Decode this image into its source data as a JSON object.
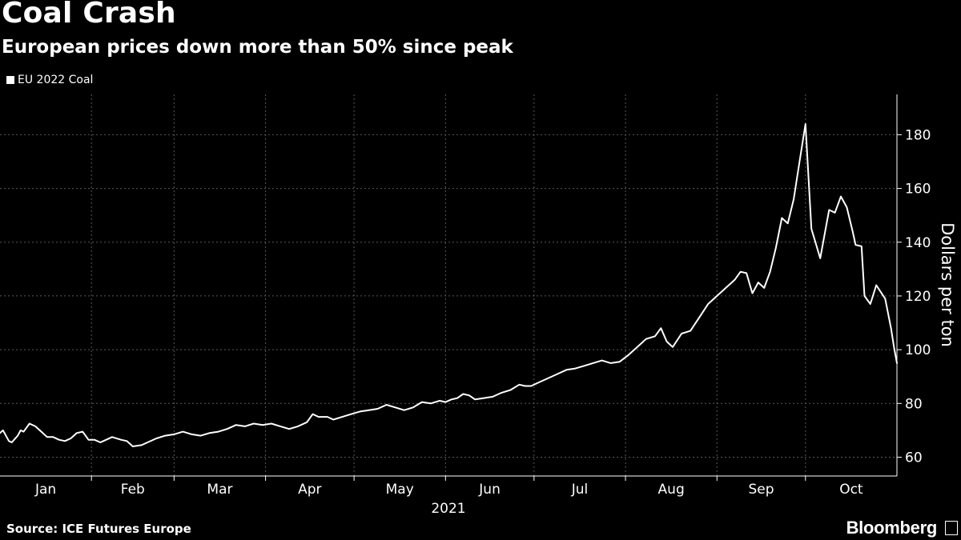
{
  "header": {
    "title": "Coal Crash",
    "subtitle": "European prices down more than 50% since peak"
  },
  "footer": {
    "source": "Source: ICE Futures Europe",
    "brand": "Bloomberg"
  },
  "colors": {
    "background": "#000000",
    "line": "#ffffff",
    "grid": "#5a5a5a"
  },
  "chart_data": {
    "type": "line",
    "title": "Coal Crash",
    "subtitle": "European prices down more than 50% since peak",
    "ylabel": "Dollars per ton",
    "xlabel": "2021",
    "xlim": [
      "2021-01-01",
      "2021-11-01"
    ],
    "ylim": [
      53,
      195
    ],
    "yticks": [
      60,
      80,
      100,
      120,
      140,
      160,
      180
    ],
    "xticks": [
      "Jan",
      "Feb",
      "Mar",
      "Apr",
      "May",
      "Jun",
      "Jul",
      "Aug",
      "Sep",
      "Oct"
    ],
    "year_label": "2021",
    "grid": true,
    "y_axis_position": "right",
    "legend_position": "top-left",
    "series": [
      {
        "name": "EU 2022 Coal",
        "color": "#ffffff",
        "points": [
          [
            "2021-01-01",
            69.0
          ],
          [
            "2021-01-02",
            70.0
          ],
          [
            "2021-01-04",
            66.0
          ],
          [
            "2021-01-05",
            65.5
          ],
          [
            "2021-01-07",
            68.0
          ],
          [
            "2021-01-08",
            70.0
          ],
          [
            "2021-01-09",
            69.5
          ],
          [
            "2021-01-11",
            72.5
          ],
          [
            "2021-01-13",
            71.5
          ],
          [
            "2021-01-15",
            69.5
          ],
          [
            "2021-01-17",
            67.5
          ],
          [
            "2021-01-19",
            67.5
          ],
          [
            "2021-01-21",
            66.5
          ],
          [
            "2021-01-23",
            66.0
          ],
          [
            "2021-01-25",
            67.0
          ],
          [
            "2021-01-27",
            69.0
          ],
          [
            "2021-01-29",
            69.5
          ],
          [
            "2021-01-31",
            66.5
          ],
          [
            "2021-02-02",
            66.5
          ],
          [
            "2021-02-04",
            65.5
          ],
          [
            "2021-02-06",
            66.5
          ],
          [
            "2021-02-08",
            67.5
          ],
          [
            "2021-02-11",
            66.5
          ],
          [
            "2021-02-13",
            66.0
          ],
          [
            "2021-02-15",
            64.0
          ],
          [
            "2021-02-18",
            64.5
          ],
          [
            "2021-02-20",
            65.5
          ],
          [
            "2021-02-23",
            67.0
          ],
          [
            "2021-02-26",
            68.0
          ],
          [
            "2021-03-01",
            68.5
          ],
          [
            "2021-03-04",
            69.5
          ],
          [
            "2021-03-07",
            68.5
          ],
          [
            "2021-03-10",
            68.0
          ],
          [
            "2021-03-13",
            69.0
          ],
          [
            "2021-03-16",
            69.5
          ],
          [
            "2021-03-19",
            70.5
          ],
          [
            "2021-03-22",
            72.0
          ],
          [
            "2021-03-25",
            71.5
          ],
          [
            "2021-03-28",
            72.5
          ],
          [
            "2021-03-31",
            72.0
          ],
          [
            "2021-04-03",
            72.5
          ],
          [
            "2021-04-06",
            71.5
          ],
          [
            "2021-04-09",
            70.5
          ],
          [
            "2021-04-12",
            71.5
          ],
          [
            "2021-04-15",
            73.0
          ],
          [
            "2021-04-17",
            76.0
          ],
          [
            "2021-04-19",
            75.0
          ],
          [
            "2021-04-22",
            75.0
          ],
          [
            "2021-04-24",
            74.0
          ],
          [
            "2021-04-27",
            75.0
          ],
          [
            "2021-04-30",
            76.0
          ],
          [
            "2021-05-03",
            77.0
          ],
          [
            "2021-05-06",
            77.5
          ],
          [
            "2021-05-09",
            78.0
          ],
          [
            "2021-05-12",
            79.5
          ],
          [
            "2021-05-15",
            78.5
          ],
          [
            "2021-05-18",
            77.5
          ],
          [
            "2021-05-21",
            78.5
          ],
          [
            "2021-05-24",
            80.5
          ],
          [
            "2021-05-27",
            80.0
          ],
          [
            "2021-05-30",
            81.0
          ],
          [
            "2021-06-01",
            80.5
          ],
          [
            "2021-06-03",
            81.5
          ],
          [
            "2021-06-05",
            82.0
          ],
          [
            "2021-06-07",
            83.5
          ],
          [
            "2021-06-09",
            83.0
          ],
          [
            "2021-06-11",
            81.5
          ],
          [
            "2021-06-14",
            82.0
          ],
          [
            "2021-06-17",
            82.5
          ],
          [
            "2021-06-20",
            84.0
          ],
          [
            "2021-06-23",
            85.0
          ],
          [
            "2021-06-26",
            87.0
          ],
          [
            "2021-06-28",
            86.5
          ],
          [
            "2021-06-30",
            86.5
          ],
          [
            "2021-07-03",
            88.0
          ],
          [
            "2021-07-06",
            89.5
          ],
          [
            "2021-07-09",
            91.0
          ],
          [
            "2021-07-12",
            92.5
          ],
          [
            "2021-07-15",
            93.0
          ],
          [
            "2021-07-18",
            94.0
          ],
          [
            "2021-07-21",
            95.0
          ],
          [
            "2021-07-24",
            96.0
          ],
          [
            "2021-07-27",
            95.0
          ],
          [
            "2021-07-30",
            95.5
          ],
          [
            "2021-08-02",
            98.0
          ],
          [
            "2021-08-05",
            101.0
          ],
          [
            "2021-08-08",
            104.0
          ],
          [
            "2021-08-11",
            105.0
          ],
          [
            "2021-08-13",
            108.0
          ],
          [
            "2021-08-15",
            103.0
          ],
          [
            "2021-08-17",
            101.0
          ],
          [
            "2021-08-20",
            106.0
          ],
          [
            "2021-08-23",
            107.0
          ],
          [
            "2021-08-26",
            112.0
          ],
          [
            "2021-08-29",
            117.0
          ],
          [
            "2021-09-01",
            120.0
          ],
          [
            "2021-09-04",
            123.0
          ],
          [
            "2021-09-07",
            126.0
          ],
          [
            "2021-09-09",
            129.0
          ],
          [
            "2021-09-11",
            128.5
          ],
          [
            "2021-09-13",
            121.0
          ],
          [
            "2021-09-15",
            125.0
          ],
          [
            "2021-09-17",
            123.0
          ],
          [
            "2021-09-19",
            129.0
          ],
          [
            "2021-09-21",
            138.0
          ],
          [
            "2021-09-23",
            149.0
          ],
          [
            "2021-09-25",
            147.0
          ],
          [
            "2021-09-27",
            156.0
          ],
          [
            "2021-09-29",
            170.0
          ],
          [
            "2021-10-01",
            184.0
          ],
          [
            "2021-10-03",
            145.0
          ],
          [
            "2021-10-06",
            134.0
          ],
          [
            "2021-10-09",
            152.0
          ],
          [
            "2021-10-11",
            151.0
          ],
          [
            "2021-10-13",
            157.0
          ],
          [
            "2021-10-15",
            153.0
          ],
          [
            "2021-10-17",
            144.0
          ],
          [
            "2021-10-18",
            139.0
          ],
          [
            "2021-10-20",
            138.5
          ],
          [
            "2021-10-21",
            120.0
          ],
          [
            "2021-10-23",
            117.0
          ],
          [
            "2021-10-25",
            124.0
          ],
          [
            "2021-10-28",
            119.0
          ],
          [
            "2021-10-30",
            108.0
          ],
          [
            "2021-10-31",
            101.0
          ],
          [
            "2021-11-01",
            95.0
          ]
        ]
      }
    ]
  }
}
